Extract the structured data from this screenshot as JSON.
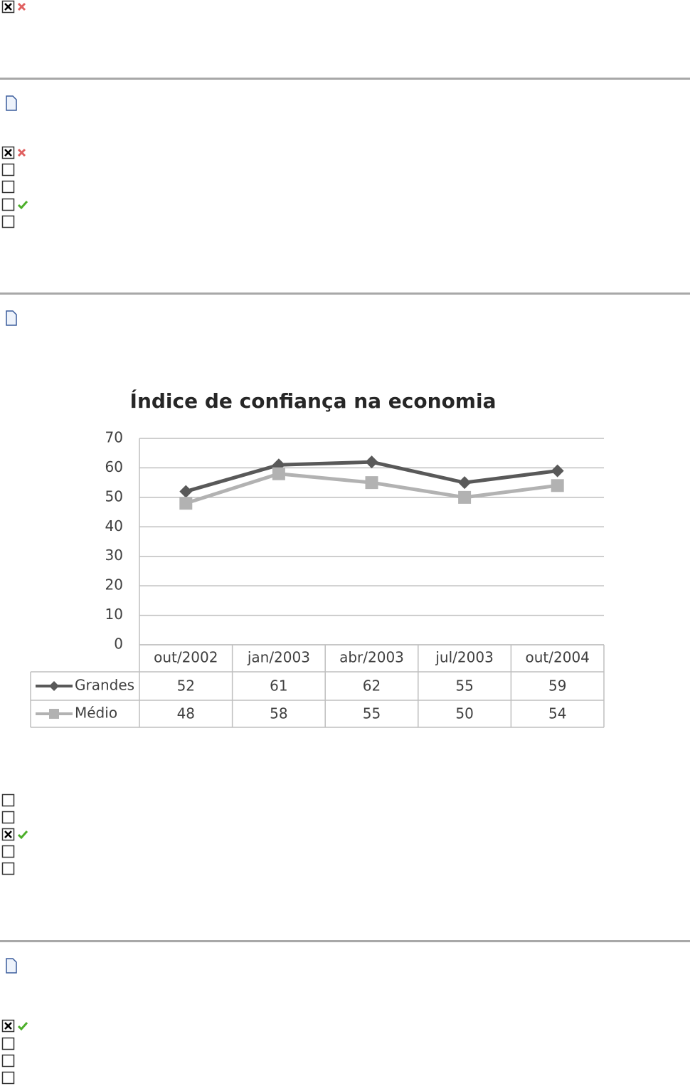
{
  "chart_data": {
    "type": "line",
    "title": "Índice de confiança na economia",
    "categories": [
      "out/2002",
      "jan/2003",
      "abr/2003",
      "jul/2003",
      "out/2004"
    ],
    "series": [
      {
        "name": "Grandes",
        "color": "#595959",
        "marker": "diamond",
        "values": [
          52,
          61,
          62,
          55,
          59
        ]
      },
      {
        "name": "Médio",
        "color": "#b2b2b2",
        "marker": "square",
        "values": [
          48,
          58,
          55,
          50,
          54
        ]
      }
    ],
    "ylim": [
      0,
      70
    ],
    "yticks": [
      0,
      10,
      20,
      30,
      40,
      50,
      60,
      70
    ],
    "grid": true,
    "data_table": true
  }
}
